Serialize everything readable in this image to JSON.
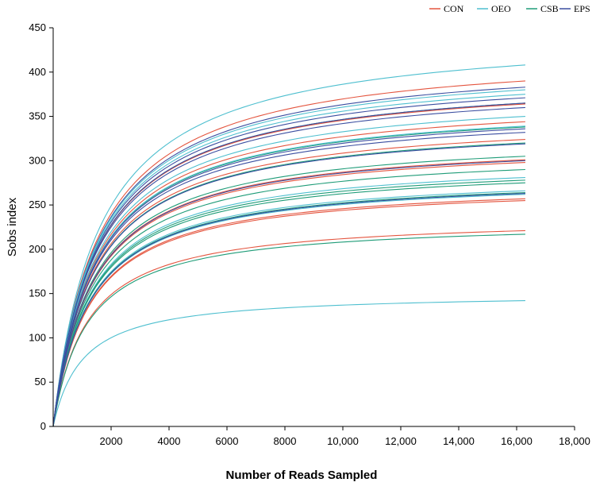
{
  "chart_data": {
    "type": "line",
    "title": "",
    "xlabel": "Number of Reads Sampled",
    "ylabel": "Sobs index",
    "xlim": [
      0,
      18000
    ],
    "ylim": [
      0,
      450
    ],
    "x_ticks": [
      2000,
      4000,
      6000,
      8000,
      10000,
      12000,
      14000,
      16000,
      18000
    ],
    "x_tick_labels": [
      "2000",
      "4000",
      "6000",
      "8000",
      "10,000",
      "12,000",
      "14,000",
      "16,000",
      "18,000"
    ],
    "y_ticks": [
      0,
      50,
      100,
      150,
      200,
      250,
      300,
      350,
      400,
      450
    ],
    "y_tick_labels": [
      "0",
      "50",
      "100",
      "150",
      "200",
      "250",
      "300",
      "350",
      "400",
      "450"
    ],
    "grid": false,
    "legend_position": "top-right",
    "x_end": 16300,
    "groups": [
      {
        "name": "CON",
        "color": "#e4553f",
        "final_values": [
          390,
          364,
          344,
          324,
          301,
          298,
          257,
          255,
          221
        ]
      },
      {
        "name": "OEO",
        "color": "#4ebfcf",
        "final_values": [
          408,
          380,
          375,
          350,
          339,
          281,
          266,
          262,
          142
        ]
      },
      {
        "name": "CSB",
        "color": "#1f9c78",
        "final_values": [
          365,
          338,
          320,
          305,
          290,
          278,
          275,
          264,
          217
        ]
      },
      {
        "name": "EPS",
        "color": "#3b4ea0",
        "final_values": [
          383,
          371,
          365,
          360,
          336,
          332,
          319,
          300,
          263
        ]
      }
    ]
  }
}
